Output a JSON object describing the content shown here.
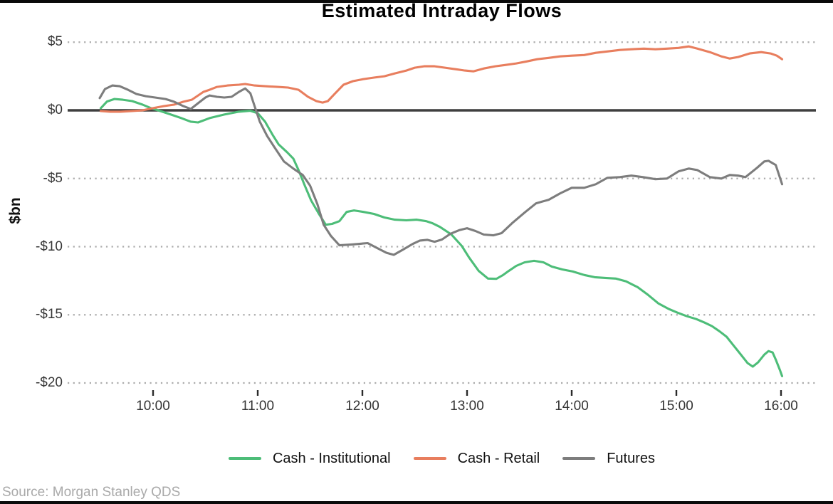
{
  "page": {
    "source_note": "Source: Morgan Stanley QDS"
  },
  "chart_data": {
    "type": "line",
    "title": "Estimated Intraday Flows",
    "ylabel": "$bn",
    "xlabel": "",
    "grid": "dotted-horizontal",
    "legend_position": "bottom",
    "zero_line_color": "#3f3f3f",
    "gridline_color": "#ababab",
    "x_axis": {
      "unit": "hours",
      "range": [
        9.45,
        16.1
      ],
      "ticks": [
        {
          "label": "10:00",
          "value": 10
        },
        {
          "label": "11:00",
          "value": 11
        },
        {
          "label": "12:00",
          "value": 12
        },
        {
          "label": "13:00",
          "value": 13
        },
        {
          "label": "14:00",
          "value": 14
        },
        {
          "label": "15:00",
          "value": 15
        },
        {
          "label": "16:00",
          "value": 16
        }
      ]
    },
    "y_axis": {
      "unit": "$bn",
      "range": [
        -20.8,
        6.0
      ],
      "ticks": [
        {
          "label": "$5",
          "value": 5
        },
        {
          "label": "$0",
          "value": 0
        },
        {
          "label": "-$5",
          "value": -5
        },
        {
          "label": "-$10",
          "value": -10
        },
        {
          "label": "-$15",
          "value": -15
        },
        {
          "label": "-$20",
          "value": -20
        }
      ]
    },
    "series": [
      {
        "name": "Cash - Institutional",
        "color": "#4dbd78",
        "points": [
          [
            9.5,
            0.15
          ],
          [
            9.56,
            0.65
          ],
          [
            9.63,
            0.83
          ],
          [
            9.71,
            0.78
          ],
          [
            9.8,
            0.68
          ],
          [
            9.9,
            0.42
          ],
          [
            9.98,
            0.16
          ],
          [
            10.07,
            -0.05
          ],
          [
            10.17,
            -0.31
          ],
          [
            10.27,
            -0.57
          ],
          [
            10.36,
            -0.83
          ],
          [
            10.43,
            -0.89
          ],
          [
            10.54,
            -0.57
          ],
          [
            10.68,
            -0.31
          ],
          [
            10.82,
            -0.1
          ],
          [
            10.93,
            -0.03
          ],
          [
            11.0,
            -0.21
          ],
          [
            11.07,
            -0.83
          ],
          [
            11.14,
            -1.77
          ],
          [
            11.2,
            -2.5
          ],
          [
            11.28,
            -3.07
          ],
          [
            11.34,
            -3.54
          ],
          [
            11.39,
            -4.38
          ],
          [
            11.45,
            -5.52
          ],
          [
            11.51,
            -6.61
          ],
          [
            11.59,
            -7.66
          ],
          [
            11.65,
            -8.39
          ],
          [
            11.71,
            -8.33
          ],
          [
            11.78,
            -8.13
          ],
          [
            11.85,
            -7.45
          ],
          [
            11.92,
            -7.34
          ],
          [
            12.01,
            -7.45
          ],
          [
            12.11,
            -7.6
          ],
          [
            12.21,
            -7.86
          ],
          [
            12.31,
            -8.02
          ],
          [
            12.42,
            -8.07
          ],
          [
            12.52,
            -8.02
          ],
          [
            12.61,
            -8.13
          ],
          [
            12.67,
            -8.28
          ],
          [
            12.74,
            -8.55
          ],
          [
            12.85,
            -9.1
          ],
          [
            12.95,
            -9.95
          ],
          [
            13.02,
            -10.8
          ],
          [
            13.11,
            -11.77
          ],
          [
            13.2,
            -12.34
          ],
          [
            13.28,
            -12.36
          ],
          [
            13.34,
            -12.1
          ],
          [
            13.4,
            -11.77
          ],
          [
            13.47,
            -11.41
          ],
          [
            13.55,
            -11.15
          ],
          [
            13.64,
            -11.04
          ],
          [
            13.73,
            -11.15
          ],
          [
            13.81,
            -11.46
          ],
          [
            13.91,
            -11.67
          ],
          [
            14.01,
            -11.82
          ],
          [
            14.12,
            -12.08
          ],
          [
            14.22,
            -12.24
          ],
          [
            14.32,
            -12.29
          ],
          [
            14.42,
            -12.34
          ],
          [
            14.52,
            -12.55
          ],
          [
            14.63,
            -12.97
          ],
          [
            14.73,
            -13.54
          ],
          [
            14.83,
            -14.17
          ],
          [
            14.93,
            -14.58
          ],
          [
            15.01,
            -14.84
          ],
          [
            15.1,
            -15.1
          ],
          [
            15.19,
            -15.31
          ],
          [
            15.27,
            -15.57
          ],
          [
            15.34,
            -15.83
          ],
          [
            15.41,
            -16.2
          ],
          [
            15.48,
            -16.61
          ],
          [
            15.54,
            -17.19
          ],
          [
            15.61,
            -17.86
          ],
          [
            15.68,
            -18.54
          ],
          [
            15.73,
            -18.8
          ],
          [
            15.78,
            -18.49
          ],
          [
            15.84,
            -17.92
          ],
          [
            15.88,
            -17.66
          ],
          [
            15.92,
            -17.76
          ],
          [
            15.95,
            -18.28
          ],
          [
            15.99,
            -19.06
          ],
          [
            16.01,
            -19.5
          ]
        ]
      },
      {
        "name": "Cash - Retail",
        "color": "#e87e5e",
        "points": [
          [
            9.5,
            -0.05
          ],
          [
            9.59,
            -0.1
          ],
          [
            9.69,
            -0.1
          ],
          [
            9.8,
            -0.05
          ],
          [
            9.9,
            0.0
          ],
          [
            10.0,
            0.16
          ],
          [
            10.1,
            0.31
          ],
          [
            10.2,
            0.42
          ],
          [
            10.29,
            0.63
          ],
          [
            10.37,
            0.78
          ],
          [
            10.48,
            1.35
          ],
          [
            10.54,
            1.51
          ],
          [
            10.61,
            1.72
          ],
          [
            10.71,
            1.82
          ],
          [
            10.82,
            1.88
          ],
          [
            10.88,
            1.93
          ],
          [
            10.97,
            1.82
          ],
          [
            11.07,
            1.77
          ],
          [
            11.19,
            1.72
          ],
          [
            11.29,
            1.67
          ],
          [
            11.39,
            1.51
          ],
          [
            11.48,
            0.99
          ],
          [
            11.56,
            0.68
          ],
          [
            11.62,
            0.57
          ],
          [
            11.67,
            0.68
          ],
          [
            11.74,
            1.25
          ],
          [
            11.82,
            1.88
          ],
          [
            11.91,
            2.14
          ],
          [
            12.01,
            2.29
          ],
          [
            12.11,
            2.4
          ],
          [
            12.21,
            2.5
          ],
          [
            12.31,
            2.71
          ],
          [
            12.42,
            2.92
          ],
          [
            12.5,
            3.13
          ],
          [
            12.59,
            3.23
          ],
          [
            12.69,
            3.23
          ],
          [
            12.79,
            3.13
          ],
          [
            12.89,
            3.02
          ],
          [
            12.98,
            2.92
          ],
          [
            13.06,
            2.86
          ],
          [
            13.16,
            3.07
          ],
          [
            13.27,
            3.23
          ],
          [
            13.37,
            3.33
          ],
          [
            13.47,
            3.44
          ],
          [
            13.57,
            3.59
          ],
          [
            13.67,
            3.75
          ],
          [
            13.78,
            3.85
          ],
          [
            13.89,
            3.96
          ],
          [
            14.0,
            4.01
          ],
          [
            14.12,
            4.06
          ],
          [
            14.23,
            4.22
          ],
          [
            14.34,
            4.32
          ],
          [
            14.46,
            4.43
          ],
          [
            14.57,
            4.48
          ],
          [
            14.69,
            4.53
          ],
          [
            14.8,
            4.48
          ],
          [
            14.91,
            4.53
          ],
          [
            15.02,
            4.58
          ],
          [
            15.12,
            4.69
          ],
          [
            15.2,
            4.53
          ],
          [
            15.32,
            4.27
          ],
          [
            15.43,
            3.96
          ],
          [
            15.51,
            3.8
          ],
          [
            15.59,
            3.91
          ],
          [
            15.7,
            4.17
          ],
          [
            15.81,
            4.27
          ],
          [
            15.9,
            4.17
          ],
          [
            15.96,
            4.01
          ],
          [
            16.01,
            3.75
          ]
        ]
      },
      {
        "name": "Futures",
        "color": "#7d7d7d",
        "points": [
          [
            9.49,
            0.9
          ],
          [
            9.54,
            1.56
          ],
          [
            9.61,
            1.82
          ],
          [
            9.68,
            1.77
          ],
          [
            9.76,
            1.51
          ],
          [
            9.84,
            1.2
          ],
          [
            9.93,
            1.04
          ],
          [
            10.02,
            0.94
          ],
          [
            10.12,
            0.83
          ],
          [
            10.2,
            0.63
          ],
          [
            10.29,
            0.31
          ],
          [
            10.36,
            0.1
          ],
          [
            10.43,
            0.52
          ],
          [
            10.5,
            0.94
          ],
          [
            10.54,
            1.09
          ],
          [
            10.61,
            0.99
          ],
          [
            10.68,
            0.94
          ],
          [
            10.75,
            0.99
          ],
          [
            10.82,
            1.35
          ],
          [
            10.88,
            1.61
          ],
          [
            10.93,
            1.25
          ],
          [
            10.97,
            0.31
          ],
          [
            11.02,
            -0.83
          ],
          [
            11.09,
            -1.88
          ],
          [
            11.16,
            -2.71
          ],
          [
            11.25,
            -3.75
          ],
          [
            11.34,
            -4.27
          ],
          [
            11.43,
            -4.74
          ],
          [
            11.5,
            -5.52
          ],
          [
            11.57,
            -6.88
          ],
          [
            11.63,
            -8.39
          ],
          [
            11.7,
            -9.22
          ],
          [
            11.78,
            -9.9
          ],
          [
            11.9,
            -9.84
          ],
          [
            12.05,
            -9.74
          ],
          [
            12.14,
            -10.1
          ],
          [
            12.23,
            -10.45
          ],
          [
            12.3,
            -10.6
          ],
          [
            12.39,
            -10.21
          ],
          [
            12.48,
            -9.8
          ],
          [
            12.55,
            -9.55
          ],
          [
            12.62,
            -9.5
          ],
          [
            12.69,
            -9.64
          ],
          [
            12.76,
            -9.48
          ],
          [
            12.84,
            -9.06
          ],
          [
            12.93,
            -8.78
          ],
          [
            13.0,
            -8.65
          ],
          [
            13.08,
            -8.85
          ],
          [
            13.16,
            -9.11
          ],
          [
            13.25,
            -9.17
          ],
          [
            13.33,
            -9.01
          ],
          [
            13.43,
            -8.28
          ],
          [
            13.55,
            -7.5
          ],
          [
            13.66,
            -6.82
          ],
          [
            13.78,
            -6.56
          ],
          [
            13.89,
            -6.09
          ],
          [
            14.0,
            -5.68
          ],
          [
            14.12,
            -5.68
          ],
          [
            14.23,
            -5.42
          ],
          [
            14.34,
            -4.95
          ],
          [
            14.46,
            -4.9
          ],
          [
            14.57,
            -4.79
          ],
          [
            14.68,
            -4.9
          ],
          [
            14.8,
            -5.05
          ],
          [
            14.91,
            -5.0
          ],
          [
            15.02,
            -4.48
          ],
          [
            15.12,
            -4.27
          ],
          [
            15.2,
            -4.38
          ],
          [
            15.32,
            -4.9
          ],
          [
            15.43,
            -5.0
          ],
          [
            15.51,
            -4.74
          ],
          [
            15.59,
            -4.79
          ],
          [
            15.66,
            -4.9
          ],
          [
            15.77,
            -4.22
          ],
          [
            15.84,
            -3.75
          ],
          [
            15.88,
            -3.7
          ],
          [
            15.95,
            -4.01
          ],
          [
            16.01,
            -5.42
          ]
        ]
      }
    ]
  }
}
